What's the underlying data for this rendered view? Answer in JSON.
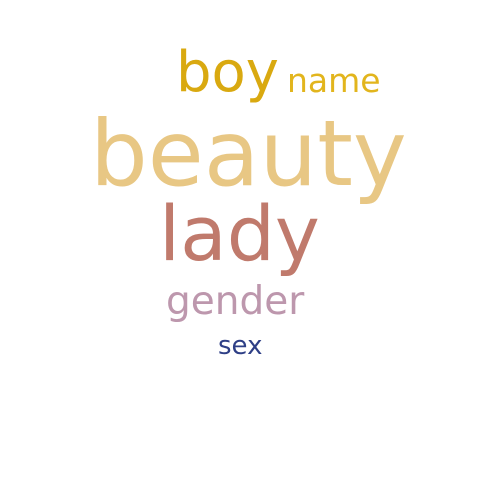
{
  "word_cloud": {
    "words": [
      {
        "text": "boy",
        "color": "#d9a910"
      },
      {
        "text": "name",
        "color": "#e2b51d"
      },
      {
        "text": "beauty",
        "color": "#e8c784"
      },
      {
        "text": "lady",
        "color": "#c07a6c"
      },
      {
        "text": "gender",
        "color": "#bd97ad"
      },
      {
        "text": "sex",
        "color": "#2e3f86"
      }
    ]
  }
}
